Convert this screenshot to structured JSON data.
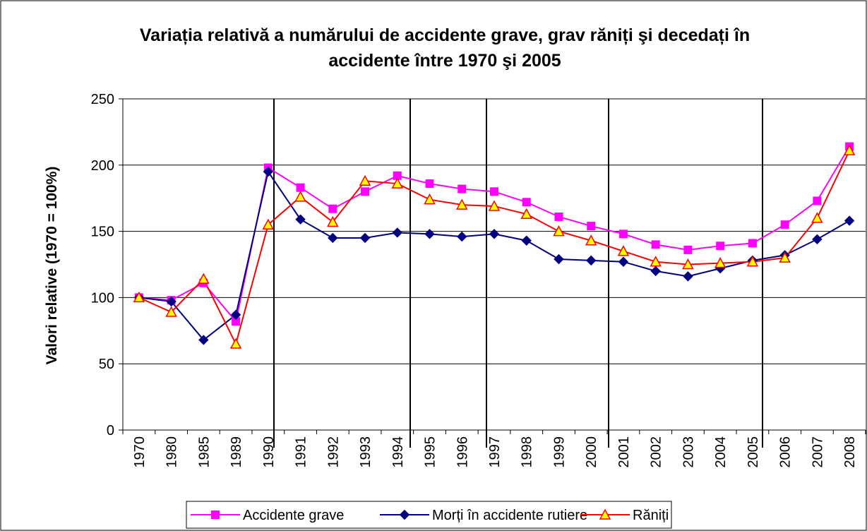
{
  "chart_data": {
    "type": "line",
    "title": "Variația relativă a numărului de accidente grave, grav răniți şi decedați în accidente între 1970 şi 2005",
    "y_label": "Valori relative (1970 = 100%)",
    "categories": [
      "1970",
      "1980",
      "1985",
      "1989",
      "1990",
      "1991",
      "1992",
      "1993",
      "1994",
      "1995",
      "1996",
      "1997",
      "1998",
      "1999",
      "2000",
      "2001",
      "2002",
      "2003",
      "2004",
      "2005",
      "2006",
      "2007",
      "2008"
    ],
    "series": [
      {
        "name": "Accidente grave",
        "color": "#ff00ff",
        "marker": "square",
        "values": [
          100,
          98,
          111,
          82,
          198,
          183,
          167,
          180,
          192,
          186,
          182,
          180,
          172,
          161,
          154,
          148,
          140,
          136,
          139,
          141,
          155,
          173,
          214
        ]
      },
      {
        "name": "Morți în accidente rutiere",
        "color": "#000080",
        "marker": "diamond",
        "values": [
          100,
          97,
          68,
          87,
          195,
          159,
          145,
          145,
          149,
          148,
          146,
          148,
          143,
          129,
          128,
          127,
          120,
          116,
          122,
          128,
          132,
          144,
          158
        ]
      },
      {
        "name": "Răniți",
        "color": "#ff0000",
        "marker": "triangle",
        "values": [
          100,
          89,
          114,
          65,
          155,
          176,
          157,
          188,
          186,
          174,
          170,
          169,
          163,
          150,
          143,
          135,
          127,
          125,
          126,
          127,
          130,
          160,
          211
        ]
      }
    ],
    "ylim": [
      0,
      250
    ],
    "yticks": [
      0,
      50,
      100,
      150,
      200,
      250
    ],
    "grid": true,
    "legend": "bottom"
  }
}
